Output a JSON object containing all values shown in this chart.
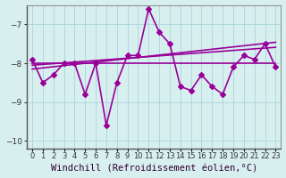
{
  "x": [
    0,
    1,
    2,
    3,
    4,
    5,
    6,
    7,
    8,
    9,
    10,
    11,
    12,
    13,
    14,
    15,
    16,
    17,
    18,
    19,
    20,
    21,
    22,
    23
  ],
  "y_main": [
    -7.9,
    -8.5,
    -8.3,
    -8.0,
    -8.0,
    -8.8,
    -8.0,
    -9.6,
    -8.5,
    -7.8,
    -7.8,
    -6.6,
    -7.2,
    -7.5,
    -8.6,
    -8.7,
    -8.3,
    -8.6,
    -8.8,
    -8.1,
    -7.8,
    -7.9,
    -7.5,
    -8.1
  ],
  "y_trend1": [
    -8.15,
    -8.12,
    -8.09,
    -8.06,
    -8.03,
    -8.0,
    -7.97,
    -7.94,
    -7.91,
    -7.88,
    -7.85,
    -7.82,
    -7.79,
    -7.76,
    -7.73,
    -7.7,
    -7.67,
    -7.64,
    -7.61,
    -7.58,
    -7.55,
    -7.52,
    -7.49,
    -7.46
  ],
  "y_trend2": [
    -8.05,
    -8.03,
    -8.01,
    -7.99,
    -7.97,
    -7.95,
    -7.93,
    -7.91,
    -7.89,
    -7.87,
    -7.85,
    -7.83,
    -7.81,
    -7.79,
    -7.77,
    -7.75,
    -7.73,
    -7.71,
    -7.69,
    -7.67,
    -7.65,
    -7.63,
    -7.61,
    -7.59
  ],
  "y_flat": [
    -8.0,
    -8.0,
    -8.0,
    -8.0,
    -8.0,
    -8.0,
    -8.0,
    -8.0,
    -8.0,
    -8.0,
    -8.0,
    -8.0,
    -8.0,
    -8.0,
    -8.0,
    -8.0,
    -8.0,
    -8.0,
    -8.0,
    -8.0,
    -8.0,
    -8.0,
    -8.0,
    -8.0
  ],
  "line_color": "#990099",
  "bg_color": "#d8eff0",
  "grid_color": "#b0d8dc",
  "ylim": [
    -10.2,
    -6.5
  ],
  "xlim": [
    -0.5,
    23.5
  ],
  "yticks": [
    -10,
    -9,
    -8,
    -7
  ],
  "xtick_labels": [
    "0",
    "1",
    "2",
    "3",
    "4",
    "5",
    "6",
    "7",
    "8",
    "9",
    "10",
    "11",
    "12",
    "13",
    "14",
    "15",
    "16",
    "17",
    "18",
    "19",
    "20",
    "21",
    "22",
    "23"
  ],
  "xlabel": "Windchill (Refroidissement éolien,°C)",
  "xlabel_fontsize": 7.5,
  "tick_fontsize": 6.5,
  "line_width": 1.2,
  "marker_size": 3.0
}
